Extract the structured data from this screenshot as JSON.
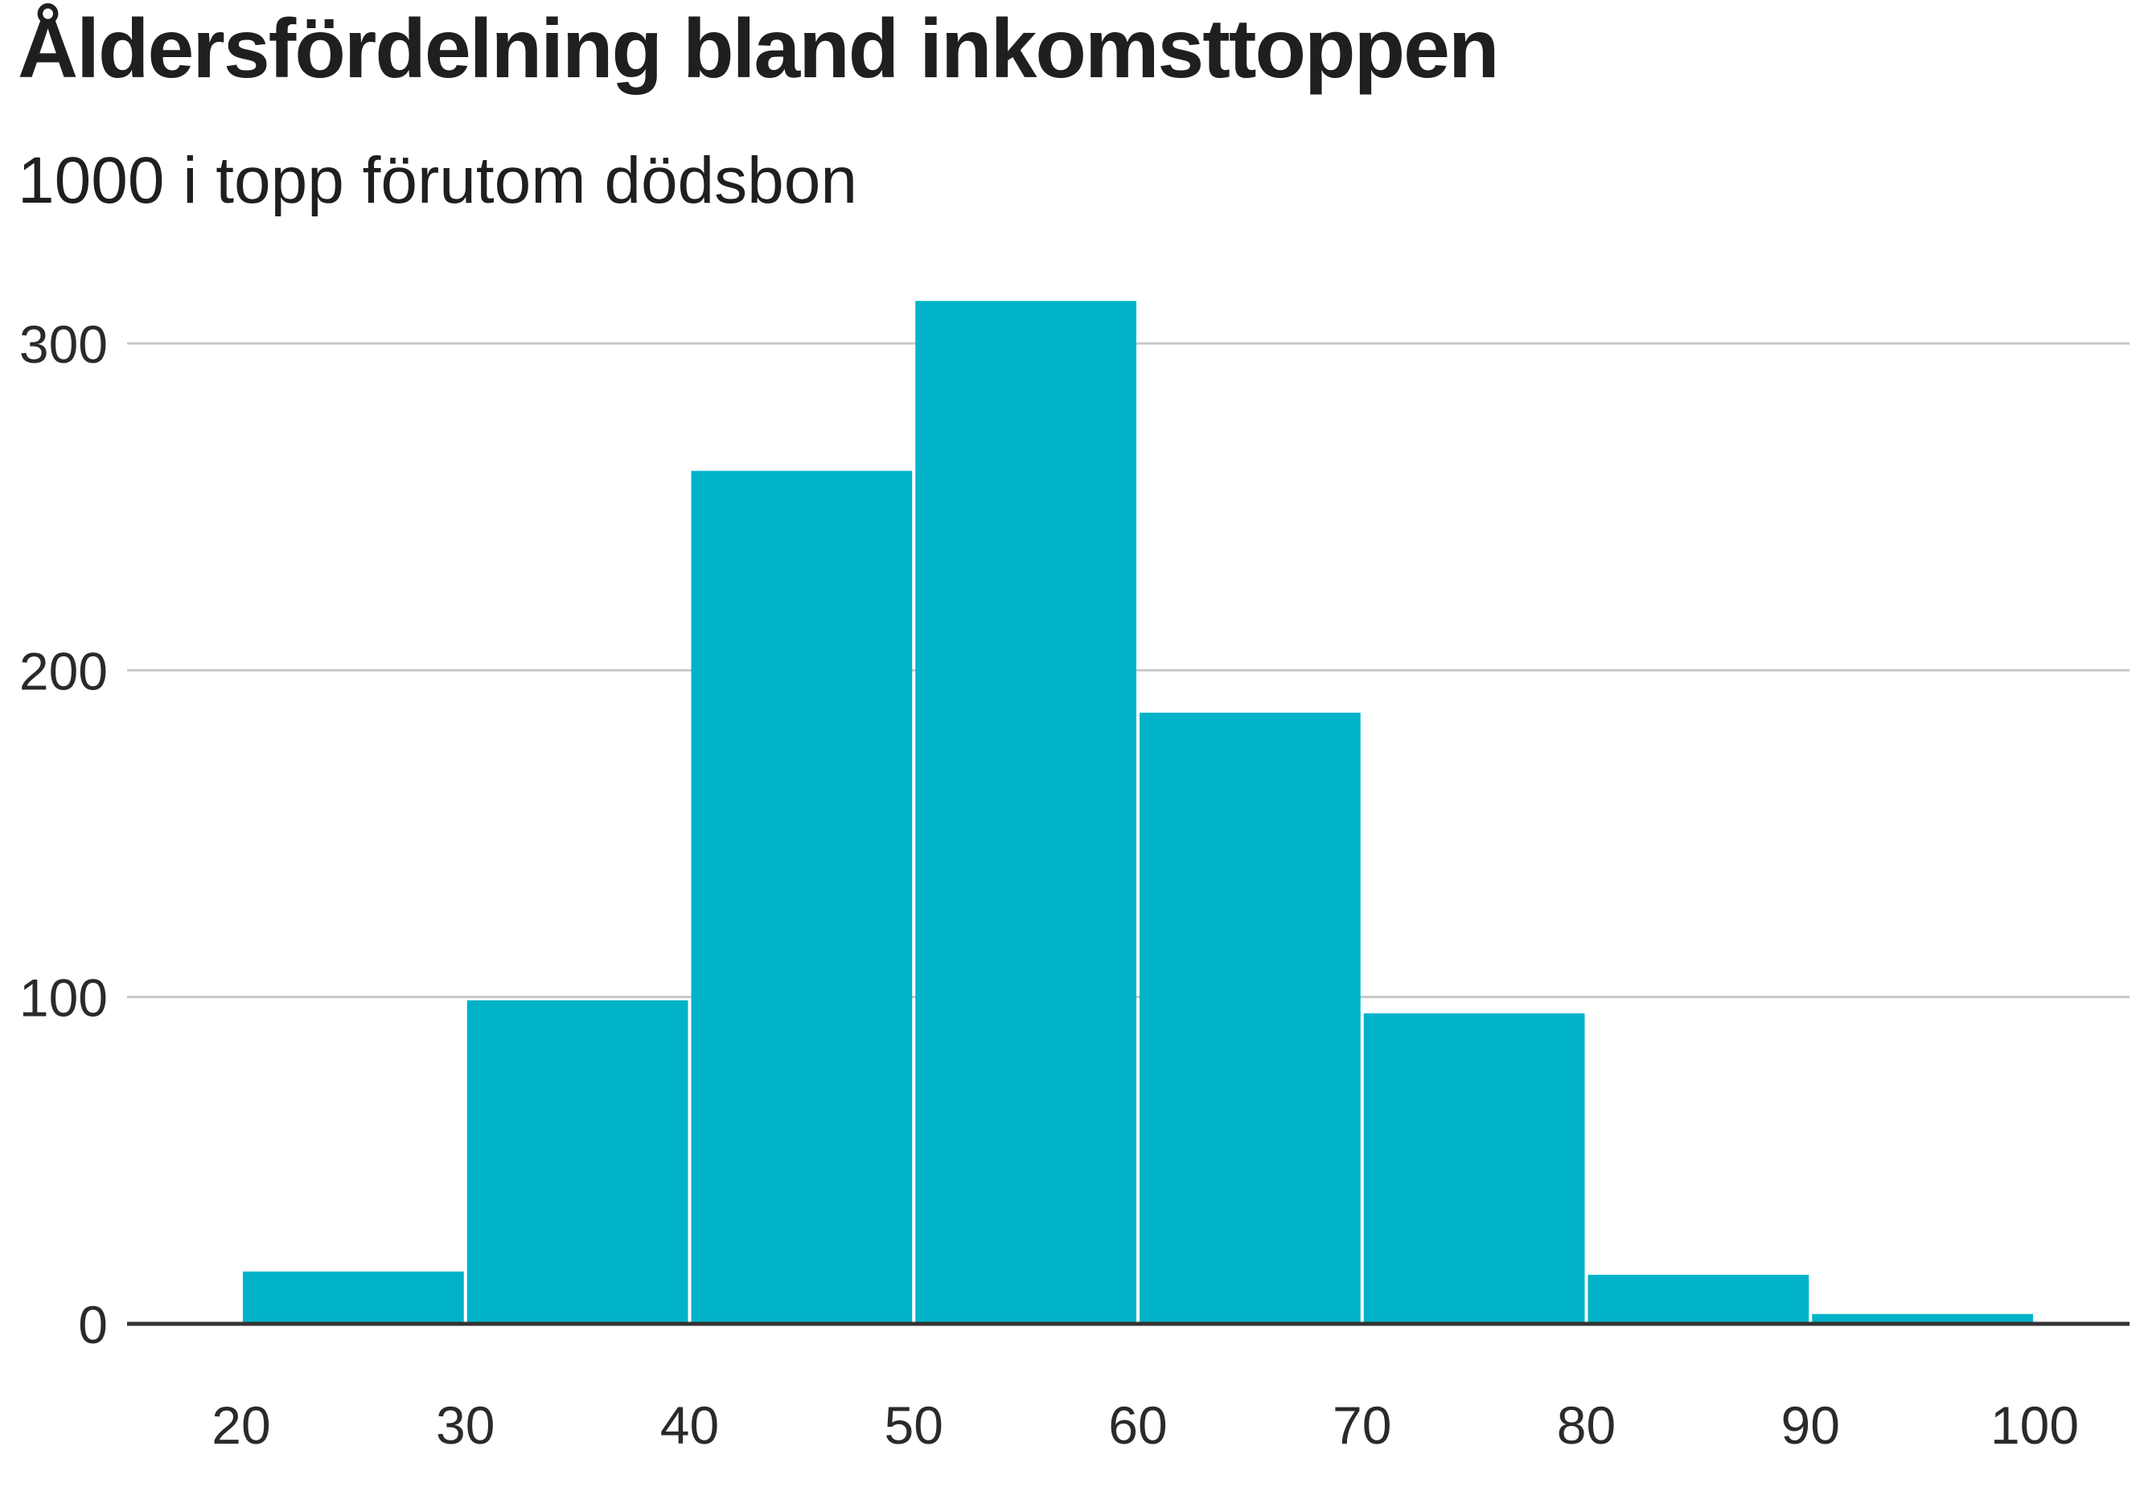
{
  "header": {
    "title": "Åldersfördelning bland inkomsttoppen",
    "subtitle": "1000 i topp förutom dödsbon"
  },
  "colors": {
    "bar": "#00B3C8",
    "grid": "#c8c8c8",
    "axis": "#333333"
  },
  "chart_data": {
    "type": "bar",
    "title": "Åldersfördelning bland inkomsttoppen",
    "subtitle": "1000 i topp förutom dödsbon",
    "xlabel": "",
    "ylabel": "",
    "bins": [
      {
        "start": 20,
        "end": 30,
        "value": 16
      },
      {
        "start": 30,
        "end": 40,
        "value": 99
      },
      {
        "start": 40,
        "end": 50,
        "value": 261
      },
      {
        "start": 50,
        "end": 60,
        "value": 313
      },
      {
        "start": 60,
        "end": 70,
        "value": 187
      },
      {
        "start": 70,
        "end": 80,
        "value": 95
      },
      {
        "start": 80,
        "end": 90,
        "value": 15
      },
      {
        "start": 90,
        "end": 100,
        "value": 3
      }
    ],
    "xlim": [
      15,
      103
    ],
    "ylim": [
      0,
      313
    ],
    "x_ticks": [
      20,
      30,
      40,
      50,
      60,
      70,
      80,
      90,
      100
    ],
    "y_ticks": [
      0,
      100,
      200,
      300
    ],
    "grid": true
  }
}
